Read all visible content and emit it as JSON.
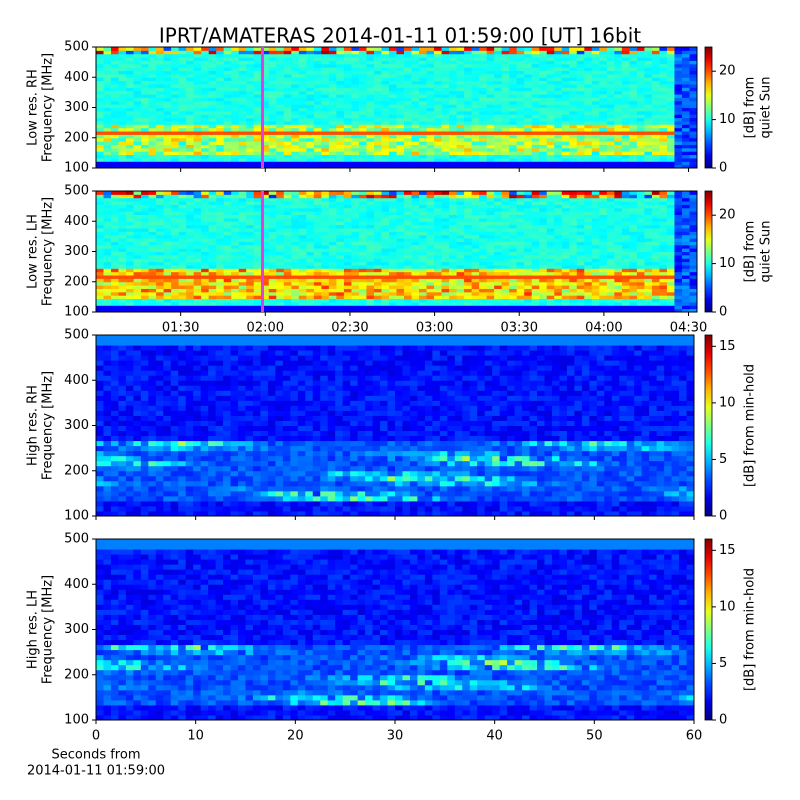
{
  "chart_data": [
    {
      "type": "heatmap",
      "title": "IPRT/AMATERAS 2014-01-11 01:59:00 [UT]   16bit",
      "ylabel": [
        "Low res. RH",
        "Frequency [MHz]"
      ],
      "ylim": [
        100,
        500
      ],
      "yticks": [
        100,
        200,
        300,
        400,
        500
      ],
      "xlim": [
        "01:00",
        "04:33"
      ],
      "sharex": true,
      "marker_time": "01:59",
      "marker_color": "#e040e0",
      "colorbar_label": [
        "[dB] from",
        "quiet Sun"
      ],
      "clim": [
        0,
        25
      ],
      "cticks": [
        0,
        10,
        20
      ]
    },
    {
      "type": "heatmap",
      "ylabel": [
        "Low res. LH",
        "Frequency [MHz]"
      ],
      "ylim": [
        100,
        500
      ],
      "yticks": [
        100,
        200,
        300,
        400,
        500
      ],
      "xlim": [
        "01:00",
        "04:33"
      ],
      "xticks": [
        "01:30",
        "02:00",
        "02:30",
        "03:00",
        "03:30",
        "04:00",
        "04:30"
      ],
      "marker_time": "01:59",
      "marker_color": "#e040e0",
      "colorbar_label": [
        "[dB] from",
        "quiet Sun"
      ],
      "clim": [
        0,
        25
      ],
      "cticks": [
        0,
        10,
        20
      ]
    },
    {
      "type": "heatmap",
      "ylabel": [
        "High res. RH",
        "Frequency [MHz]"
      ],
      "ylim": [
        100,
        500
      ],
      "yticks": [
        100,
        200,
        300,
        400,
        500
      ],
      "xlim": [
        0,
        60
      ],
      "sharex": true,
      "colorbar_label": [
        "[dB] from min-hold"
      ],
      "clim": [
        0,
        16
      ],
      "cticks": [
        0,
        5,
        10,
        15
      ]
    },
    {
      "type": "heatmap",
      "ylabel": [
        "High res. LH",
        "Frequency [MHz]"
      ],
      "ylim": [
        100,
        500
      ],
      "yticks": [
        100,
        200,
        300,
        400,
        500
      ],
      "xlim": [
        0,
        60
      ],
      "xticks": [
        0,
        10,
        20,
        30,
        40,
        50,
        60
      ],
      "xlabel": [
        "Seconds from",
        "2014-01-11 01:59:00"
      ],
      "colorbar_label": [
        "[dB] from min-hold"
      ],
      "clim": [
        0,
        16
      ],
      "cticks": [
        0,
        5,
        10,
        15
      ]
    }
  ]
}
